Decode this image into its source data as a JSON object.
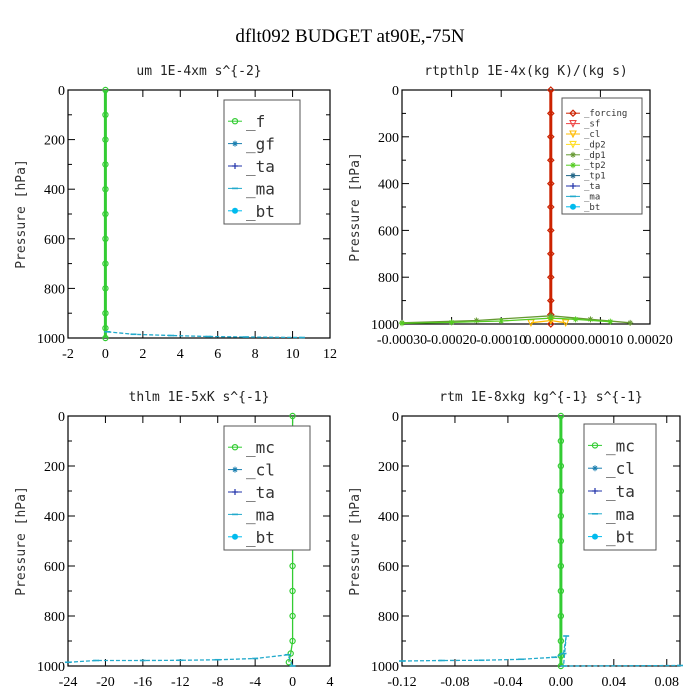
{
  "figure_title": "dflt092  BUDGET at90E,-75N",
  "chart_data": [
    {
      "type": "line",
      "title": "um  1E-4xm s^{-2}",
      "ylabel": "Pressure [hPa]",
      "xlabel": "",
      "xlim": [
        -2,
        12
      ],
      "ylim": [
        1000,
        0
      ],
      "xticks": [
        "-2",
        "0",
        "2",
        "4",
        "6",
        "8",
        "10",
        "12"
      ],
      "yticks": [
        "0",
        "200",
        "400",
        "600",
        "800",
        "1000"
      ],
      "legend": {
        "entries": [
          "_f",
          "_gf",
          "_ta",
          "_ma",
          "_bt"
        ],
        "size": "big"
      },
      "series": [
        {
          "name": "_f",
          "color": "#33cc33",
          "marker": "circle",
          "points": [
            [
              0,
              0
            ],
            [
              0,
              100
            ],
            [
              0,
              200
            ],
            [
              0,
              300
            ],
            [
              0,
              400
            ],
            [
              0,
              500
            ],
            [
              0,
              600
            ],
            [
              0,
              700
            ],
            [
              0,
              800
            ],
            [
              0,
              900
            ],
            [
              0,
              960
            ],
            [
              0,
              1000
            ]
          ]
        },
        {
          "name": "_gf",
          "color": "#1a7fb0",
          "marker": "star",
          "points": []
        },
        {
          "name": "_ta",
          "color": "#2233aa",
          "marker": "plus",
          "points": []
        },
        {
          "name": "_ma",
          "color": "#22aacc",
          "marker": "dash",
          "points": [
            [
              0.1,
              975
            ],
            [
              1.5,
              985
            ],
            [
              3.5,
              990
            ],
            [
              5.5,
              994
            ],
            [
              7.5,
              996
            ],
            [
              10.5,
              998
            ]
          ]
        },
        {
          "name": "_bt",
          "color": "#00bbee",
          "marker": "dot",
          "points": []
        }
      ]
    },
    {
      "type": "line",
      "title": "rtpthlp  1E-4x(kg K)/(kg s)",
      "ylabel": "Pressure [hPa]",
      "xlabel": "",
      "xlim": [
        -0.0003,
        0.0002
      ],
      "ylim": [
        1000,
        0
      ],
      "xticks": [
        "-0.00030",
        "-0.00020",
        "-0.00010",
        "0.000000",
        "0.00010",
        "0.00020"
      ],
      "yticks": [
        "0",
        "200",
        "400",
        "600",
        "800",
        "1000"
      ],
      "legend": {
        "entries": [
          "_forcing",
          "_sf",
          "_cl",
          "_dp2",
          "_dp1",
          "_tp2",
          "_tp1",
          "_ta",
          "_ma",
          "_bt"
        ],
        "size": "small"
      },
      "series": [
        {
          "name": "_forcing",
          "color": "#cc2200",
          "marker": "diamond",
          "points": [
            [
              0,
              0
            ],
            [
              0,
              100
            ],
            [
              0,
              200
            ],
            [
              0,
              300
            ],
            [
              0,
              400
            ],
            [
              0,
              500
            ],
            [
              0,
              600
            ],
            [
              0,
              700
            ],
            [
              0,
              800
            ],
            [
              0,
              900
            ],
            [
              0,
              960
            ],
            [
              0,
              1000
            ]
          ]
        },
        {
          "name": "_sf",
          "color": "#ee4444",
          "marker": "tri",
          "points": []
        },
        {
          "name": "_cl",
          "color": "#ffbb00",
          "marker": "tri",
          "points": [
            [
              -4e-05,
              995
            ],
            [
              0,
              985
            ],
            [
              3e-05,
              995
            ]
          ]
        },
        {
          "name": "_dp2",
          "color": "#ffdd22",
          "marker": "tri",
          "points": []
        },
        {
          "name": "_dp1",
          "color": "#669933",
          "marker": "star",
          "points": [
            [
              -0.0003,
              995
            ],
            [
              -0.00015,
              985
            ],
            [
              0,
              965
            ],
            [
              8e-05,
              980
            ],
            [
              0.00016,
              995
            ]
          ]
        },
        {
          "name": "_tp2",
          "color": "#55cc22",
          "marker": "star",
          "points": [
            [
              -0.0003,
              997
            ],
            [
              -0.0002,
              993
            ],
            [
              -0.0001,
              987
            ],
            [
              0,
              975
            ],
            [
              5e-05,
              980
            ],
            [
              0.00012,
              990
            ]
          ]
        },
        {
          "name": "_tp1",
          "color": "#226688",
          "marker": "star",
          "points": []
        },
        {
          "name": "_ta",
          "color": "#2233aa",
          "marker": "plus",
          "points": []
        },
        {
          "name": "_ma",
          "color": "#22aacc",
          "marker": "dash",
          "points": []
        },
        {
          "name": "_bt",
          "color": "#00bbee",
          "marker": "dot",
          "points": []
        }
      ]
    },
    {
      "type": "line",
      "title": "thlm  1E-5xK s^{-1}",
      "ylabel": "Pressure [hPa]",
      "xlabel": "",
      "xlim": [
        -24,
        4
      ],
      "ylim": [
        1000,
        0
      ],
      "xticks": [
        "-24",
        "-20",
        "-16",
        "-12",
        "-8",
        "-4",
        "0",
        "4"
      ],
      "yticks": [
        "0",
        "200",
        "400",
        "600",
        "800",
        "1000"
      ],
      "legend": {
        "entries": [
          "_mc",
          "_cl",
          "_ta",
          "_ma",
          "_bt"
        ],
        "size": "big"
      },
      "series": [
        {
          "name": "_mc",
          "color": "#33cc33",
          "marker": "circle",
          "points": [
            [
              0,
              0
            ],
            [
              0,
              100
            ],
            [
              0,
              200
            ],
            [
              0,
              300
            ],
            [
              0,
              400
            ],
            [
              0,
              500
            ],
            [
              0,
              600
            ],
            [
              0,
              700
            ],
            [
              0,
              800
            ],
            [
              0,
              900
            ],
            [
              -0.2,
              950
            ],
            [
              -0.4,
              985
            ]
          ]
        },
        {
          "name": "_cl",
          "color": "#1a7fb0",
          "marker": "star",
          "points": []
        },
        {
          "name": "_ta",
          "color": "#2233aa",
          "marker": "plus",
          "points": []
        },
        {
          "name": "_ma",
          "color": "#22aacc",
          "marker": "dash",
          "points": [
            [
              -24,
              985
            ],
            [
              -21,
              978
            ],
            [
              -16,
              978
            ],
            [
              -12,
              977
            ],
            [
              -8,
              975
            ],
            [
              -4,
              970
            ],
            [
              -0.5,
              955
            ],
            [
              0,
              1000
            ]
          ]
        },
        {
          "name": "_bt",
          "color": "#00bbee",
          "marker": "dot",
          "points": []
        }
      ]
    },
    {
      "type": "line",
      "title": "rtm  1E-8xkg kg^{-1} s^{-1}",
      "ylabel": "Pressure [hPa]",
      "xlabel": "",
      "xlim": [
        -0.12,
        0.09
      ],
      "ylim": [
        1000,
        0
      ],
      "xticks": [
        "-0.12",
        "-0.08",
        "-0.04",
        "0.00",
        "0.04",
        "0.08"
      ],
      "yticks": [
        "0",
        "200",
        "400",
        "600",
        "800",
        "1000"
      ],
      "legend": {
        "entries": [
          "_mc",
          "_cl",
          "_ta",
          "_ma",
          "_bt"
        ],
        "size": "big"
      },
      "series": [
        {
          "name": "_mc",
          "color": "#33cc33",
          "marker": "circle",
          "points": [
            [
              0,
              0
            ],
            [
              0,
              100
            ],
            [
              0,
              200
            ],
            [
              0,
              300
            ],
            [
              0,
              400
            ],
            [
              0,
              500
            ],
            [
              0,
              600
            ],
            [
              0,
              700
            ],
            [
              0,
              800
            ],
            [
              0,
              900
            ],
            [
              0,
              960
            ],
            [
              0,
              1000
            ]
          ]
        },
        {
          "name": "_cl",
          "color": "#1a7fb0",
          "marker": "star",
          "points": []
        },
        {
          "name": "_ta",
          "color": "#2233aa",
          "marker": "plus",
          "points": []
        },
        {
          "name": "_ma",
          "color": "#22aacc",
          "marker": "dash",
          "points": [
            [
              -0.12,
              980
            ],
            [
              -0.09,
              978
            ],
            [
              -0.06,
              977
            ],
            [
              -0.03,
              973
            ],
            [
              -0.005,
              965
            ],
            [
              0.002,
              950
            ],
            [
              0.004,
              880
            ],
            [
              0.002,
              1000
            ],
            [
              0.09,
              998
            ]
          ]
        },
        {
          "name": "_bt",
          "color": "#00bbee",
          "marker": "dot",
          "points": []
        }
      ]
    }
  ]
}
